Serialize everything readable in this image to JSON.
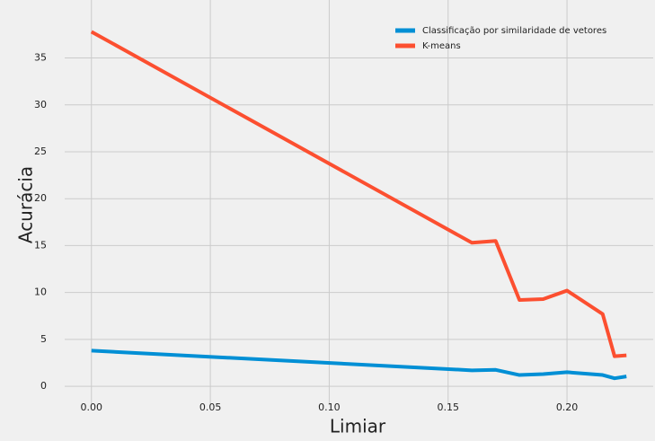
{
  "chart_data": {
    "type": "line",
    "x_label": "Limiar",
    "y_label": "Acurácia",
    "x": [
      0.0,
      0.16,
      0.17,
      0.18,
      0.19,
      0.2,
      0.215,
      0.22,
      0.225
    ],
    "series": [
      {
        "name": "Classificação por similaridade de vetores",
        "color": "#008fd5",
        "values": [
          3.8,
          1.7,
          1.75,
          1.2,
          1.3,
          1.5,
          1.2,
          0.85,
          1.05
        ]
      },
      {
        "name": "K-means",
        "color": "#fc4f30",
        "values": [
          37.8,
          15.3,
          15.5,
          9.2,
          9.3,
          10.2,
          7.7,
          3.2,
          3.3
        ]
      }
    ],
    "xlim": [
      -0.01125,
      0.23625
    ],
    "ylim": [
      -0.95,
      39.65
    ],
    "xticks": [
      {
        "value": 0.0,
        "label": "0.00"
      },
      {
        "value": 0.05,
        "label": "0.05"
      },
      {
        "value": 0.1,
        "label": "0.10"
      },
      {
        "value": 0.15,
        "label": "0.15"
      },
      {
        "value": 0.2,
        "label": "0.20"
      }
    ],
    "yticks": [
      0,
      5,
      10,
      15,
      20,
      25,
      30,
      35
    ],
    "grid": true,
    "legend": "upper right"
  }
}
